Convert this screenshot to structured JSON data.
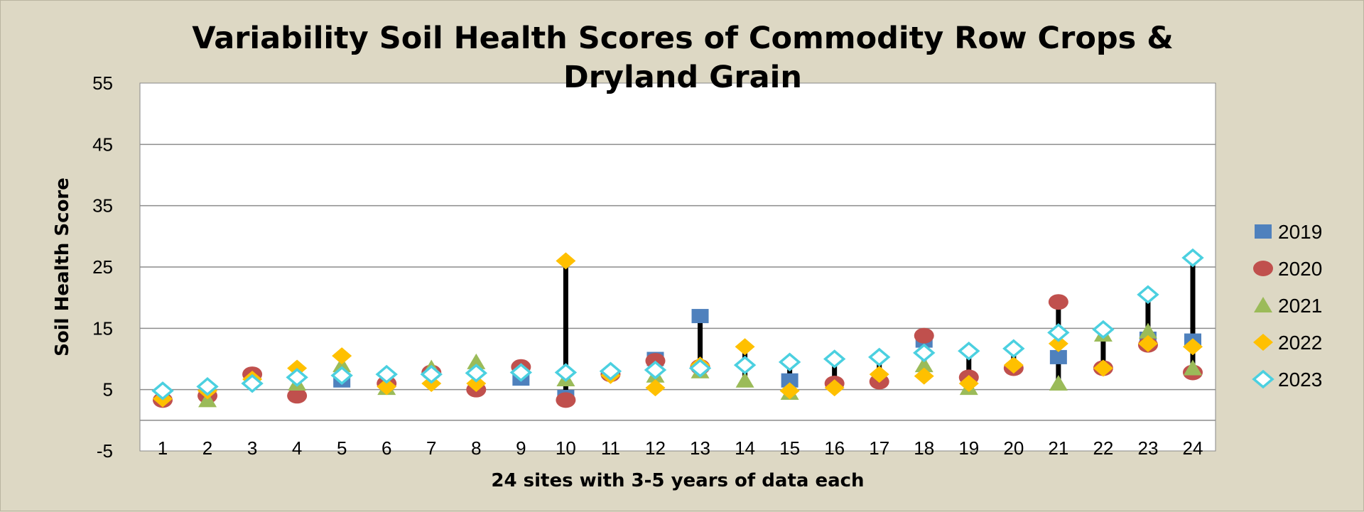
{
  "chart_data": {
    "type": "scatter",
    "title_line1": "Variability Soil Health Scores  of Commodity Row Crops &",
    "title_line2": "Dryland Grain",
    "xlabel": "24 sites with 3-5 years of data each",
    "ylabel": "Soil Health Score",
    "ylim": [
      -5,
      55
    ],
    "yticks": [
      -5,
      5,
      15,
      25,
      35,
      45,
      55
    ],
    "categories": [
      "1",
      "2",
      "3",
      "4",
      "5",
      "6",
      "7",
      "8",
      "9",
      "10",
      "11",
      "12",
      "13",
      "14",
      "15",
      "16",
      "17",
      "18",
      "19",
      "20",
      "21",
      "22",
      "23",
      "24"
    ],
    "gridlines": "horizontal",
    "legend_position": "right",
    "range_bars": "min-max per site",
    "series": [
      {
        "name": "2019",
        "marker": "square",
        "color": "#4f81bd",
        "values": [
          null,
          null,
          null,
          null,
          6.5,
          null,
          null,
          null,
          6.8,
          3.8,
          null,
          10.0,
          17.0,
          null,
          6.5,
          null,
          null,
          13.0,
          null,
          null,
          10.3,
          null,
          13.3,
          13.0
        ]
      },
      {
        "name": "2020",
        "marker": "circle",
        "color": "#c0504d",
        "values": [
          3.3,
          4.0,
          7.5,
          4.0,
          null,
          6.0,
          7.8,
          5.0,
          8.7,
          3.3,
          7.5,
          9.7,
          8.7,
          null,
          null,
          6.0,
          6.3,
          13.8,
          7.0,
          8.5,
          19.3,
          8.5,
          12.3,
          7.8
        ]
      },
      {
        "name": "2021",
        "marker": "triangle",
        "color": "#9bbb59",
        "values": [
          null,
          3.3,
          null,
          6.0,
          9.0,
          5.3,
          8.5,
          9.5,
          null,
          6.7,
          null,
          7.3,
          8.0,
          6.5,
          4.5,
          null,
          null,
          9.0,
          5.3,
          null,
          6.0,
          14.0,
          14.5,
          8.5
        ]
      },
      {
        "name": "2022",
        "marker": "diamond",
        "color": "#ffc000",
        "values": [
          3.5,
          4.8,
          6.7,
          8.5,
          10.5,
          5.5,
          6.0,
          6.0,
          null,
          26.0,
          7.3,
          5.3,
          9.0,
          12.0,
          4.8,
          5.3,
          7.5,
          7.2,
          6.0,
          9.0,
          12.5,
          8.5,
          12.5,
          12.0
        ]
      },
      {
        "name": "2023",
        "marker": "diamond-outline",
        "color": "#4bd0e0",
        "values": [
          4.8,
          5.5,
          6.0,
          7.0,
          7.3,
          7.5,
          7.5,
          7.7,
          7.8,
          7.8,
          8.0,
          8.2,
          8.5,
          9.0,
          9.5,
          10.0,
          10.3,
          11.0,
          11.3,
          11.7,
          14.3,
          14.8,
          20.5,
          26.5
        ]
      }
    ]
  }
}
